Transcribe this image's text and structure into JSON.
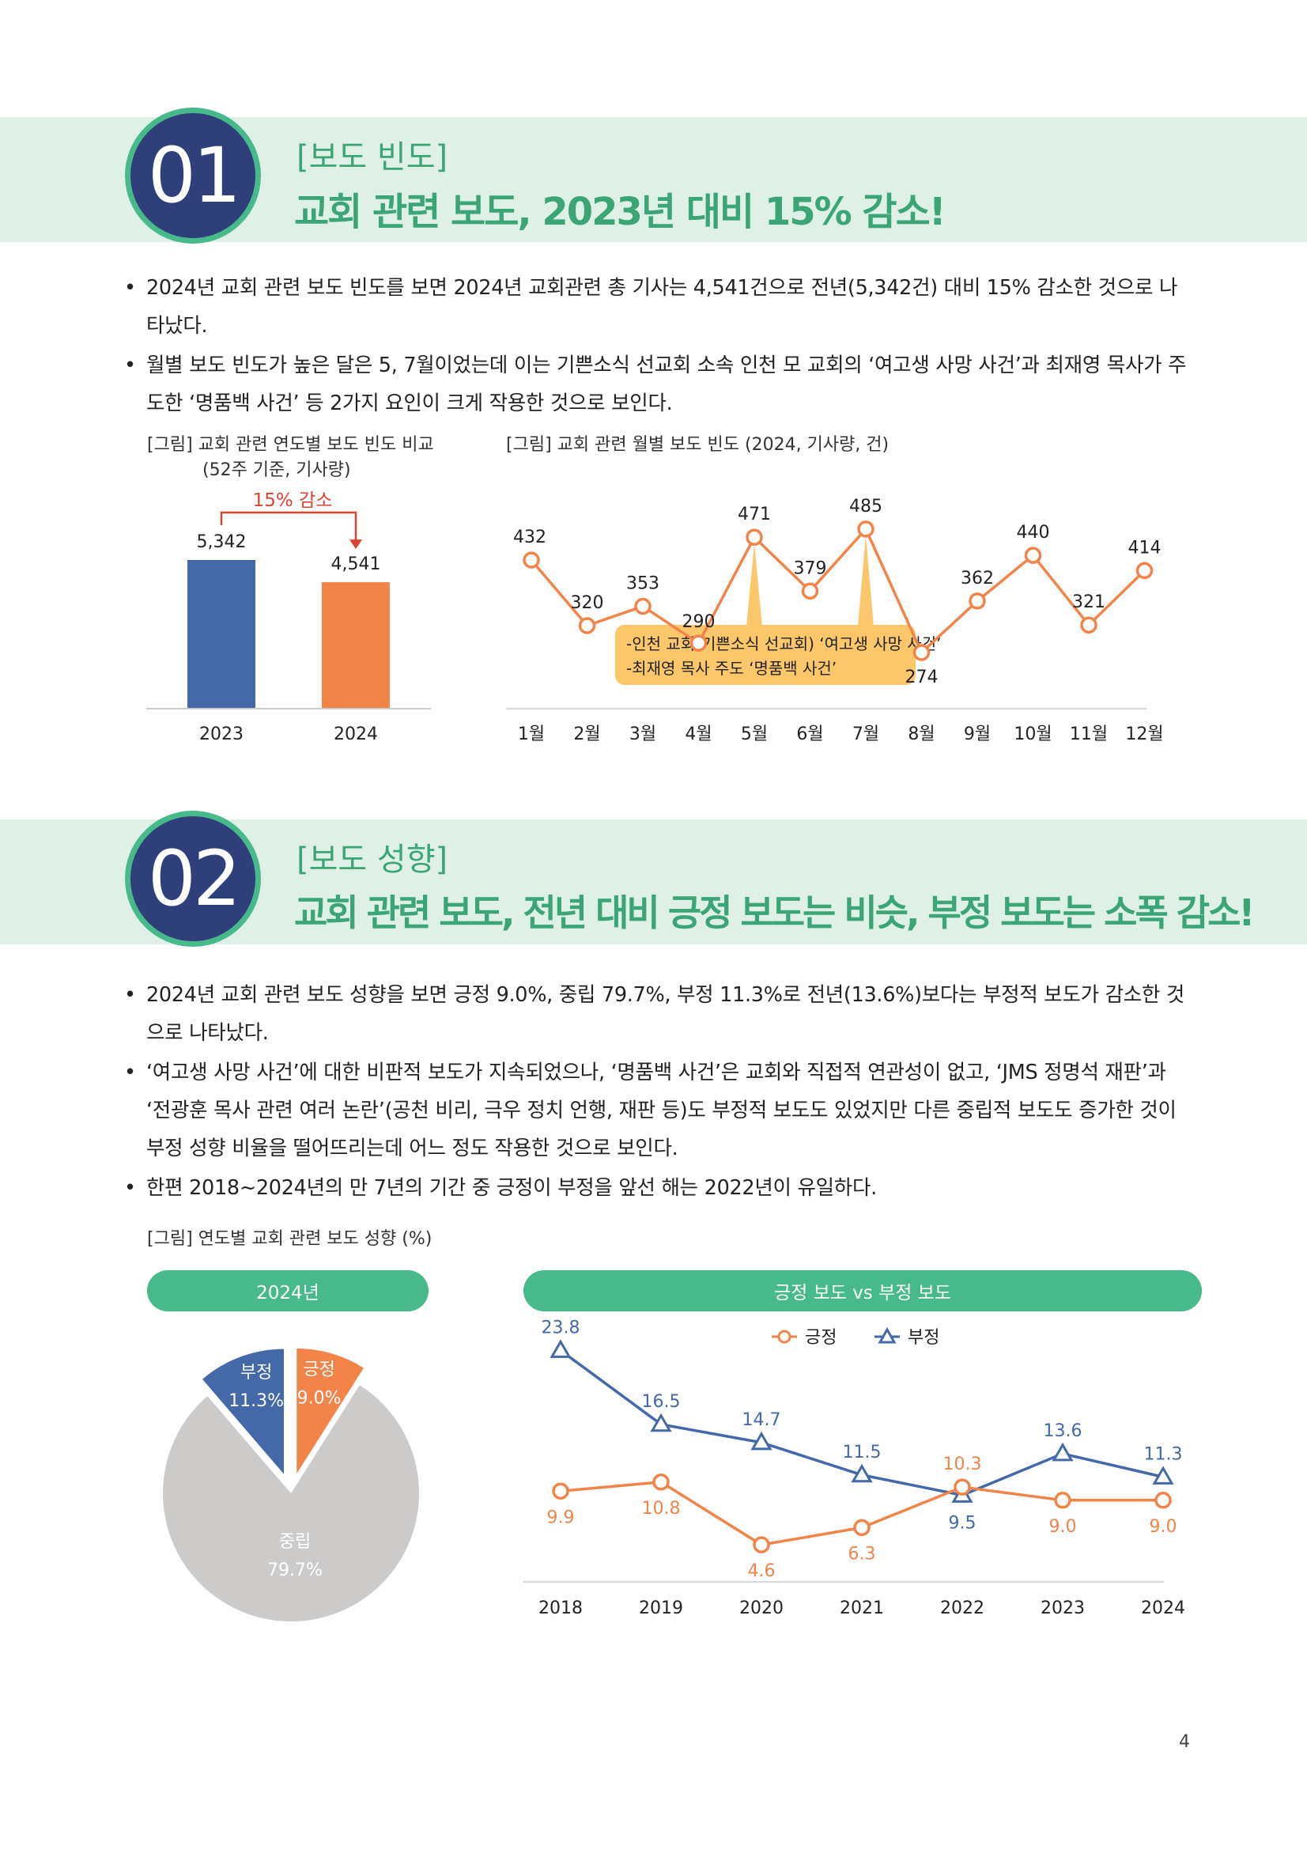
{
  "sec1": {
    "number": "01",
    "category": "[보도 빈도]",
    "title": "교회 관련 보도, 2023년 대비 15% 감소!",
    "bullets": [
      "2024년 교회 관련 보도 빈도를 보면 2024년 교회관련 총 기사는 4,541건으로 전년(5,342건) 대비 15% 감소한 것으로 나타났다.",
      "월별 보도 빈도가 높은 달은 5, 7월이었는데 이는 기쁜소식 선교회 소속 인천 모 교회의 ‘여고생 사망 사건’과 최재영 목사가 주도한 ‘명품백 사건’ 등 2가지 요인이 크게 작용한 것으로 보인다."
    ],
    "fig1_caption_line1": "[그림] 교회 관련 연도별 보도 빈도 비교",
    "fig1_caption_line2": "(52주 기준, 기사량)",
    "fig2_caption": "[그림] 교회 관련 월별 보도 빈도 (2024, 기사량, 건)"
  },
  "sec2": {
    "number": "02",
    "category": "[보도 성향]",
    "title": "교회 관련 보도, 전년 대비 긍정 보도는 비슷, 부정 보도는 소폭 감소!",
    "bullets": [
      "2024년 교회 관련 보도 성향을 보면 긍정 9.0%, 중립 79.7%, 부정 11.3%로 전년(13.6%)보다는 부정적 보도가 감소한 것으로 나타났다.",
      "‘여고생 사망 사건’에 대한 비판적 보도가 지속되었으나, ‘명품백 사건’은 교회와 직접적 연관성이 없고, ‘JMS 정명석 재판’과 ‘전광훈 목사 관련 여러 논란’(공천 비리, 극우 정치 언행, 재판 등)도 부정적 보도도 있었지만 다른 중립적 보도도 증가한 것이 부정 성향 비율을 떨어뜨리는데 어느 정도 작용한 것으로 보인다.",
      "한편 2018~2024년의 만 7년의 기간 중 긍정이 부정을 앞선 해는 2022년이 유일하다."
    ],
    "fig_caption": "[그림] 연도별 교회 관련 보도 성향 (%)",
    "pie_title": "2024년",
    "line_title": "긍정 보도 vs 부정 보도"
  },
  "page_number": "4",
  "chart_data": [
    {
      "type": "bar",
      "categories": [
        "2023",
        "2024"
      ],
      "values": [
        5342,
        4541
      ],
      "value_labels": [
        "5,342",
        "4,541"
      ],
      "annotation": "15% 감소",
      "colors": [
        "#4468a8",
        "#f2844a"
      ]
    },
    {
      "type": "line",
      "categories": [
        "1월",
        "2월",
        "3월",
        "4월",
        "5월",
        "6월",
        "7월",
        "8월",
        "9월",
        "10월",
        "11월",
        "12월"
      ],
      "values": [
        432,
        320,
        353,
        290,
        471,
        379,
        485,
        274,
        362,
        440,
        321,
        414
      ],
      "color": "#f2844a",
      "callout": [
        "-인천 교회(기쁜소식 선교회) ‘여고생 사망 사건’",
        "-최재영 목사 주도 ‘명품백 사건’"
      ],
      "callout_color": "#fcc76b"
    },
    {
      "type": "pie",
      "slices": [
        {
          "label": "긍정",
          "value": 9.0,
          "value_label": "9.0%",
          "color": "#f2844a"
        },
        {
          "label": "중립",
          "value": 79.7,
          "value_label": "79.7%",
          "color": "#cdcbca"
        },
        {
          "label": "부정",
          "value": 11.3,
          "value_label": "11.3%",
          "color": "#4468a8"
        }
      ]
    },
    {
      "type": "line",
      "categories": [
        "2018",
        "2019",
        "2020",
        "2021",
        "2022",
        "2023",
        "2024"
      ],
      "series": [
        {
          "name": "긍정",
          "values": [
            9.9,
            10.8,
            4.6,
            6.3,
            10.3,
            9.0,
            9.0
          ],
          "labels": [
            "9.9",
            "10.8",
            "4.6",
            "6.3",
            "10.3",
            "9.0",
            "9.0"
          ],
          "color": "#f2844a",
          "marker": "circle"
        },
        {
          "name": "부정",
          "values": [
            23.8,
            16.5,
            14.7,
            11.5,
            9.5,
            13.6,
            11.3
          ],
          "labels": [
            "23.8",
            "16.5",
            "14.7",
            "11.5",
            "9.5",
            "13.6",
            "11.3"
          ],
          "color": "#4468a8",
          "marker": "triangle"
        }
      ],
      "legend": "top-center"
    }
  ]
}
